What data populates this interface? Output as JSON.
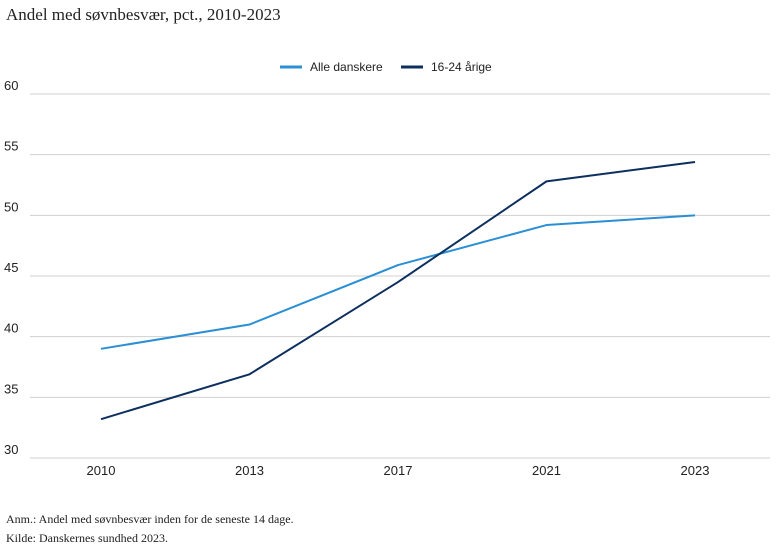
{
  "chart_data": {
    "type": "line",
    "title": "Andel med søvnbesvær, pct., 2010-2023",
    "categories": [
      "2010",
      "2013",
      "2017",
      "2021",
      "2023"
    ],
    "series": [
      {
        "name": "Alle danskere",
        "values": [
          39.0,
          41.0,
          45.9,
          49.2,
          50.0
        ],
        "color": "#2a8fd4"
      },
      {
        "name": "16-24 årige",
        "values": [
          33.2,
          36.9,
          44.5,
          52.8,
          54.4
        ],
        "color": "#0c2f5e"
      }
    ],
    "ylim": [
      30,
      60
    ],
    "yticks": [
      30,
      35,
      40,
      45,
      50,
      55,
      60
    ],
    "grid": true,
    "legend_position": "top-center",
    "xlabel": "",
    "ylabel": ""
  },
  "notes": {
    "annotation": "Anm.: Andel med søvnbesvær inden for de seneste 14 dage.",
    "source": "Kilde: Danskernes sundhed 2023."
  }
}
